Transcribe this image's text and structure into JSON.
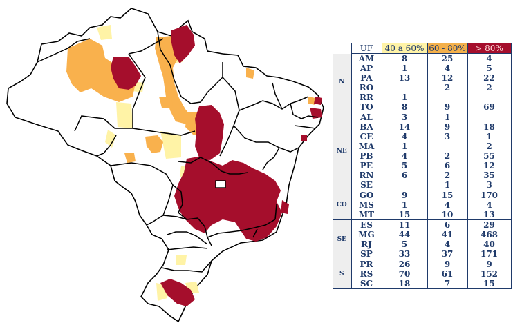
{
  "map": {
    "colors": {
      "class_40_60": "#fff3a6",
      "class_60_80": "#f9b14d",
      "class_gt_80": "#a50e2c",
      "border": "#000000",
      "background": "#ffffff"
    }
  },
  "table": {
    "headers": [
      "UF",
      "40 a 60%",
      "60 - 80%",
      "> 80%"
    ],
    "header_colors": [
      "#ffffff",
      "#fff3a6",
      "#f4b04a",
      "#a50e2c"
    ],
    "groups": [
      {
        "region": "N",
        "rows": [
          {
            "uf": "AM",
            "c1": "8",
            "c2": "25",
            "c3": "4"
          },
          {
            "uf": "AP",
            "c1": "1",
            "c2": "4",
            "c3": "5"
          },
          {
            "uf": "PA",
            "c1": "13",
            "c2": "12",
            "c3": "22"
          },
          {
            "uf": "RO",
            "c1": "",
            "c2": "2",
            "c3": "2"
          },
          {
            "uf": "RR",
            "c1": "1",
            "c2": "",
            "c3": ""
          },
          {
            "uf": "TO",
            "c1": "8",
            "c2": "9",
            "c3": "69"
          }
        ]
      },
      {
        "region": "NE",
        "rows": [
          {
            "uf": "AL",
            "c1": "3",
            "c2": "1",
            "c3": ""
          },
          {
            "uf": "BA",
            "c1": "14",
            "c2": "9",
            "c3": "18"
          },
          {
            "uf": "CE",
            "c1": "4",
            "c2": "3",
            "c3": "1"
          },
          {
            "uf": "MA",
            "c1": "1",
            "c2": "",
            "c3": "2"
          },
          {
            "uf": "PB",
            "c1": "4",
            "c2": "2",
            "c3": "55"
          },
          {
            "uf": "PE",
            "c1": "5",
            "c2": "6",
            "c3": "12"
          },
          {
            "uf": "RN",
            "c1": "6",
            "c2": "2",
            "c3": "35"
          },
          {
            "uf": "SE",
            "c1": "",
            "c2": "1",
            "c3": "3"
          }
        ]
      },
      {
        "region": "CO",
        "rows": [
          {
            "uf": "GO",
            "c1": "9",
            "c2": "15",
            "c3": "170"
          },
          {
            "uf": "MS",
            "c1": "1",
            "c2": "4",
            "c3": "4"
          },
          {
            "uf": "MT",
            "c1": "15",
            "c2": "10",
            "c3": "13"
          }
        ]
      },
      {
        "region": "SE",
        "rows": [
          {
            "uf": "ES",
            "c1": "11",
            "c2": "6",
            "c3": "29"
          },
          {
            "uf": "MG",
            "c1": "44",
            "c2": "41",
            "c3": "468"
          },
          {
            "uf": "RJ",
            "c1": "5",
            "c2": "4",
            "c3": "40"
          },
          {
            "uf": "SP",
            "c1": "33",
            "c2": "37",
            "c3": "171"
          }
        ]
      },
      {
        "region": "S",
        "rows": [
          {
            "uf": "PR",
            "c1": "26",
            "c2": "9",
            "c3": "9"
          },
          {
            "uf": "RS",
            "c1": "70",
            "c2": "61",
            "c3": "152"
          },
          {
            "uf": "SC",
            "c1": "18",
            "c2": "7",
            "c3": "15"
          }
        ]
      }
    ]
  }
}
